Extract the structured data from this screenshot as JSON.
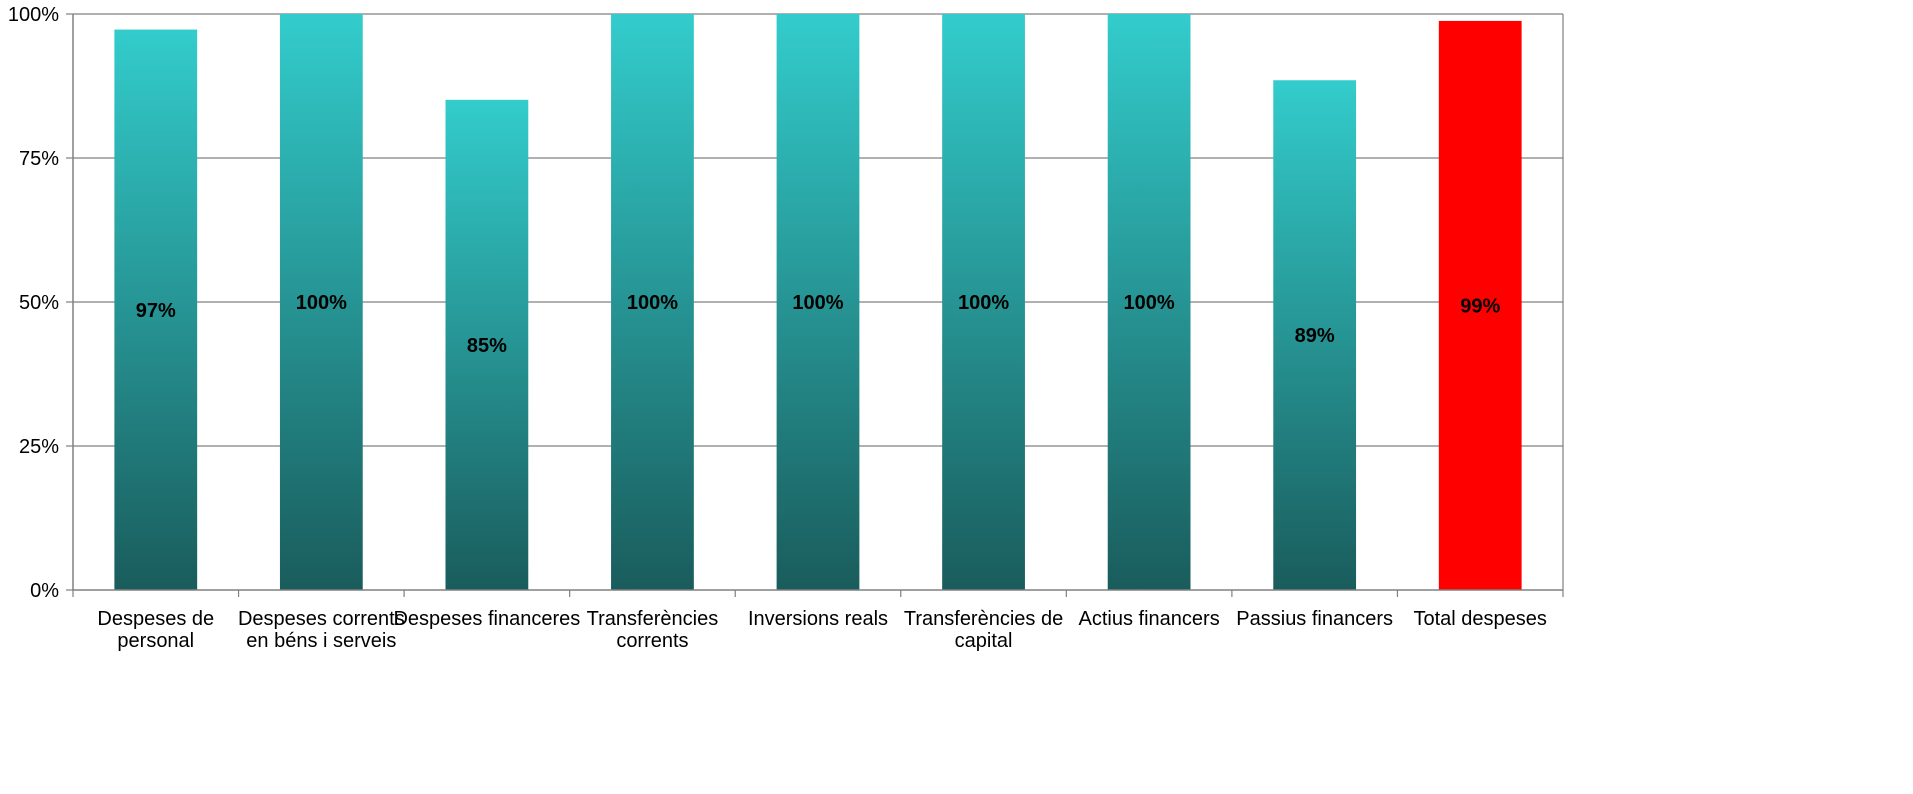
{
  "chart_data": {
    "type": "bar",
    "title": "",
    "xlabel": "",
    "ylabel": "",
    "categories": [
      [
        "Despeses de",
        "personal"
      ],
      [
        "Despeses corrents",
        "en béns i serveis"
      ],
      [
        "Despeses financeres"
      ],
      [
        "Transferències",
        "corrents"
      ],
      [
        "Inversions reals"
      ],
      [
        "Transferències de",
        "capital"
      ],
      [
        "Actius financers"
      ],
      [
        "Passius financers"
      ],
      [
        "Total despeses"
      ]
    ],
    "values": [
      97.3,
      100,
      85.1,
      100,
      100,
      100,
      100,
      88.5,
      98.8
    ],
    "value_labels": [
      "97%",
      "100%",
      "85%",
      "100%",
      "100%",
      "100%",
      "100%",
      "89%",
      "99%"
    ],
    "highlight_index": 8,
    "ylim": [
      0,
      100
    ],
    "yticks": [
      0,
      25,
      50,
      75,
      100
    ],
    "ytick_labels": [
      "0%",
      "25%",
      "50%",
      "75%",
      "100%"
    ],
    "grid": true,
    "legend": "none",
    "colors": {
      "bar_top": "#33cccc",
      "bar_bottom": "#1a5c5c",
      "highlight": "#ff0000",
      "grid": "#808080",
      "axis": "#808080"
    }
  }
}
